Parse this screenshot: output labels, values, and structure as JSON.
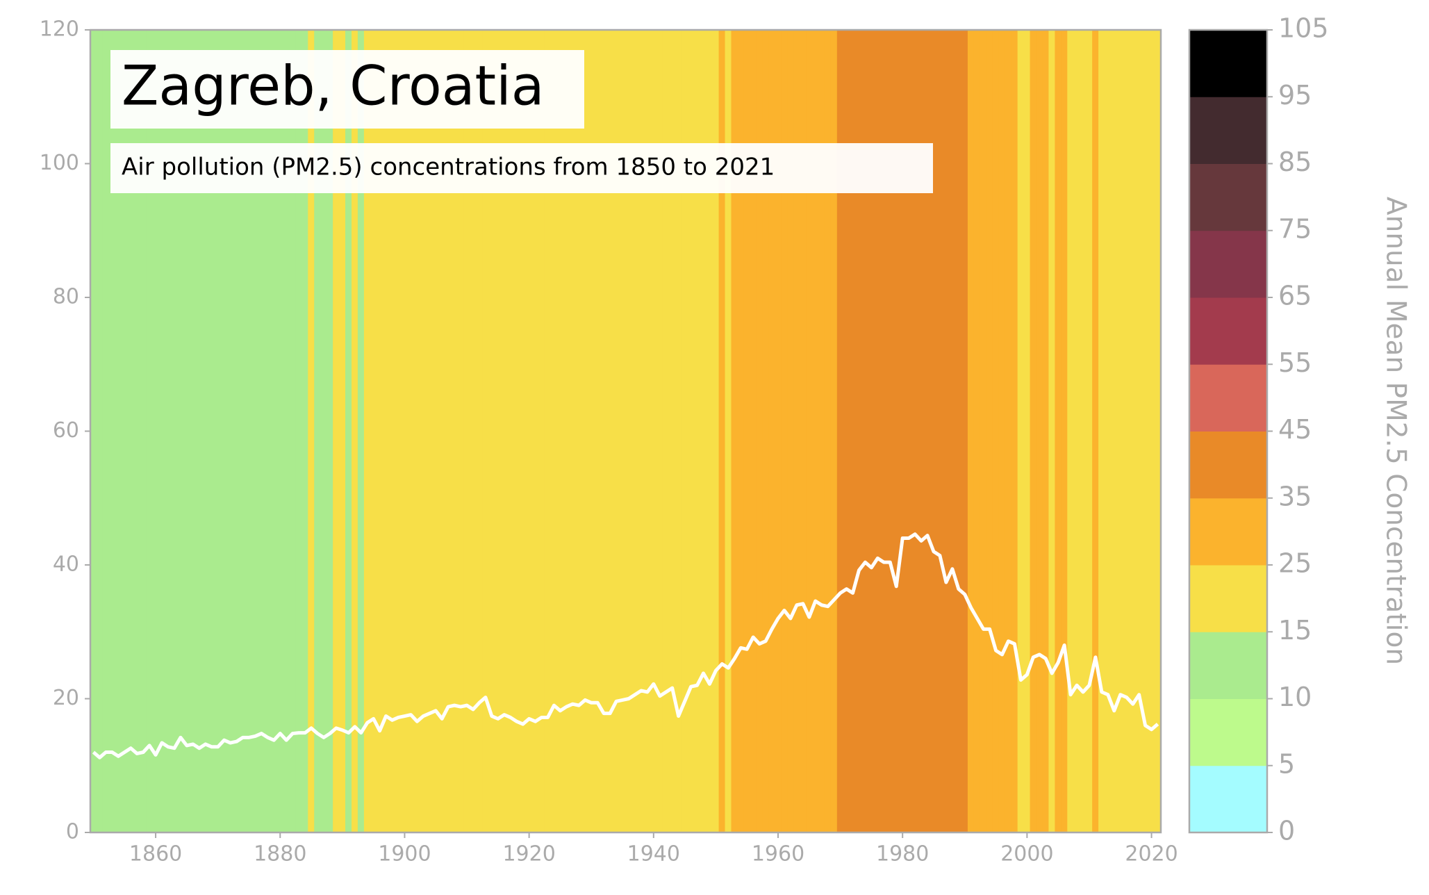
{
  "chart_data": {
    "type": "stripes-line",
    "title": "Zagreb, Croatia",
    "subtitle": "Air pollution (PM2.5) concentrations from 1850 to 2021",
    "colorbar_label": "Annual Mean PM2.5 Concentration",
    "line_color": "#ffffff",
    "x": [
      1850,
      1851,
      1852,
      1853,
      1854,
      1855,
      1856,
      1857,
      1858,
      1859,
      1860,
      1861,
      1862,
      1863,
      1864,
      1865,
      1866,
      1867,
      1868,
      1869,
      1870,
      1871,
      1872,
      1873,
      1874,
      1875,
      1876,
      1877,
      1878,
      1879,
      1880,
      1881,
      1882,
      1883,
      1884,
      1885,
      1886,
      1887,
      1888,
      1889,
      1890,
      1891,
      1892,
      1893,
      1894,
      1895,
      1896,
      1897,
      1898,
      1899,
      1900,
      1901,
      1902,
      1903,
      1904,
      1905,
      1906,
      1907,
      1908,
      1909,
      1910,
      1911,
      1912,
      1913,
      1914,
      1915,
      1916,
      1917,
      1918,
      1919,
      1920,
      1921,
      1922,
      1923,
      1924,
      1925,
      1926,
      1927,
      1928,
      1929,
      1930,
      1931,
      1932,
      1933,
      1934,
      1935,
      1936,
      1937,
      1938,
      1939,
      1940,
      1941,
      1942,
      1943,
      1944,
      1945,
      1946,
      1947,
      1948,
      1949,
      1950,
      1951,
      1952,
      1953,
      1954,
      1955,
      1956,
      1957,
      1958,
      1959,
      1960,
      1961,
      1962,
      1963,
      1964,
      1965,
      1966,
      1967,
      1968,
      1969,
      1970,
      1971,
      1972,
      1973,
      1974,
      1975,
      1976,
      1977,
      1978,
      1979,
      1980,
      1981,
      1982,
      1983,
      1984,
      1985,
      1986,
      1987,
      1988,
      1989,
      1990,
      1991,
      1992,
      1993,
      1994,
      1995,
      1996,
      1997,
      1998,
      1999,
      2000,
      2001,
      2002,
      2003,
      2004,
      2005,
      2006,
      2007,
      2008,
      2009,
      2010,
      2011,
      2012,
      2013,
      2014,
      2015,
      2016,
      2017,
      2018,
      2019,
      2020,
      2021
    ],
    "values": [
      12,
      11.2,
      12,
      12,
      11.4,
      12,
      12.6,
      11.8,
      12,
      13,
      11.6,
      13.4,
      12.8,
      12.6,
      14.2,
      13,
      13.2,
      12.6,
      13.2,
      12.8,
      12.8,
      13.8,
      13.4,
      13.6,
      14.2,
      14.2,
      14.4,
      14.8,
      14.2,
      13.8,
      14.8,
      13.8,
      14.8,
      14.9,
      14.9,
      15.6,
      14.8,
      14.2,
      14.8,
      15.6,
      15.3,
      14.9,
      15.8,
      14.9,
      16.4,
      17,
      15.2,
      17.4,
      16.8,
      17.2,
      17.4,
      17.6,
      16.6,
      17.4,
      17.8,
      18.2,
      17,
      18.8,
      19,
      18.8,
      19,
      18.4,
      19.4,
      20.2,
      17.4,
      17,
      17.6,
      17.2,
      16.6,
      16.2,
      17,
      16.6,
      17.2,
      17.2,
      19,
      18.2,
      18.8,
      19.2,
      19,
      19.8,
      19.4,
      19.4,
      17.8,
      17.8,
      19.6,
      19.8,
      20,
      20.6,
      21.2,
      21,
      22.2,
      20.4,
      21,
      21.6,
      17.4,
      19.6,
      21.8,
      22,
      23.8,
      22.2,
      24.2,
      25.2,
      24.6,
      26,
      27.6,
      27.4,
      29.2,
      28.2,
      28.6,
      30.4,
      32,
      33.2,
      32,
      34,
      34.2,
      32.2,
      34.6,
      34,
      33.8,
      34.8,
      35.8,
      36.4,
      35.8,
      39.2,
      40.4,
      39.6,
      41,
      40.4,
      40.4,
      36.8,
      44,
      44,
      44.6,
      43.6,
      44.4,
      42,
      41.4,
      37.4,
      39.4,
      36.4,
      35.6,
      33.6,
      32,
      30.4,
      30.4,
      27.2,
      26.6,
      28.6,
      28.2,
      22.8,
      23.6,
      26.2,
      26.6,
      26,
      23.8,
      25.4,
      28,
      20.6,
      22,
      21,
      22,
      26.2,
      21,
      20.6,
      18.2,
      20.6,
      20.2,
      19.2,
      20.6,
      16,
      15.4,
      16.2
    ],
    "xlim": [
      1849.5,
      2021.5
    ],
    "xticks": [
      1860,
      1880,
      1900,
      1920,
      1940,
      1960,
      1980,
      2000,
      2020
    ],
    "ylim": [
      0,
      120
    ],
    "yticks": [
      0,
      20,
      40,
      60,
      80,
      100,
      120
    ],
    "colorbar_ticks": [
      0,
      5,
      10,
      15,
      25,
      35,
      45,
      55,
      65,
      75,
      85,
      95,
      105
    ],
    "colorbar_colors": [
      "#a4fcff",
      "#bdfa8c",
      "#aaeb8e",
      "#f7df48",
      "#fbb32d",
      "#e98a28",
      "#d9675a",
      "#a33b4d",
      "#85364a",
      "#66383c",
      "#432b2f",
      "#000000"
    ]
  }
}
